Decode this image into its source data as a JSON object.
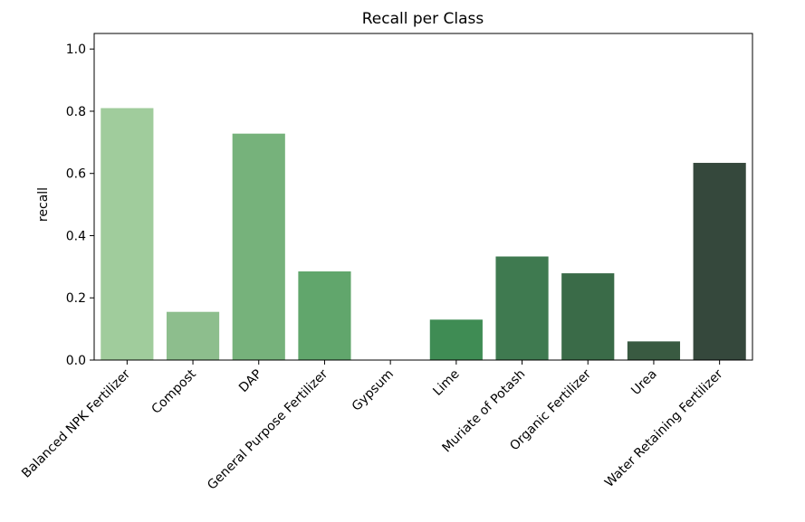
{
  "chart_data": {
    "type": "bar",
    "title": "Recall per Class",
    "xlabel": "",
    "ylabel": "recall",
    "ylim": [
      0,
      1.05
    ],
    "yticks": [
      0.0,
      0.2,
      0.4,
      0.6,
      0.8,
      1.0
    ],
    "ytick_labels": [
      "0.0",
      "0.2",
      "0.4",
      "0.6",
      "0.8",
      "1.0"
    ],
    "grid": false,
    "categories": [
      "Balanced NPK Fertilizer",
      "Compost",
      "DAP",
      "General Purpose Fertilizer",
      "Gypsum",
      "Lime",
      "Muriate of Potash",
      "Organic Fertilizer",
      "Urea",
      "Water Retaining Fertilizer"
    ],
    "values": [
      0.81,
      0.155,
      0.728,
      0.285,
      0.0,
      0.13,
      0.333,
      0.279,
      0.06,
      0.634
    ],
    "colors": [
      "#a0cc9c",
      "#8dbe8d",
      "#76b27b",
      "#61a66c",
      "#4a9a5e",
      "#3f8c54",
      "#3f7a50",
      "#3a6b48",
      "#395a41",
      "#35483c"
    ],
    "truncated_label": "r"
  }
}
